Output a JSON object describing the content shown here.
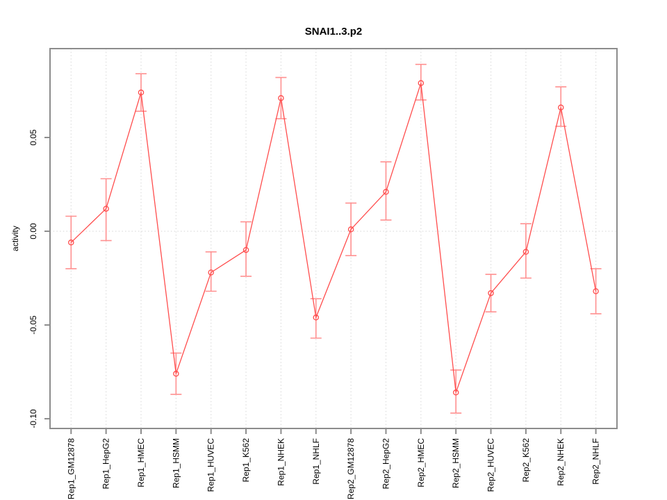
{
  "title": "SNAI1..3.p2",
  "chart_data": {
    "type": "line",
    "title": "SNAI1..3.p2",
    "xlabel": "",
    "ylabel": "activity",
    "legend": "none",
    "grid": {
      "vertical_dotted_at_each_category": true,
      "horizontal_dotted_at_zero": true
    },
    "marker": "open-circle",
    "error_bars": true,
    "ylim": [
      -0.1052,
      0.0974
    ],
    "y_ticks": [
      0.05,
      0.0,
      -0.05,
      -0.1
    ],
    "y_tick_labels": [
      "0.05",
      "0.00",
      "-0.05",
      "-0.10"
    ],
    "categories": [
      "Rep1_GM12878",
      "Rep1_HepG2",
      "Rep1_HMEC",
      "Rep1_HSMM",
      "Rep1_HUVEC",
      "Rep1_K562",
      "Rep1_NHEK",
      "Rep1_NHLF",
      "Rep2_GM12878",
      "Rep2_HepG2",
      "Rep2_HMEC",
      "Rep2_HSMM",
      "Rep2_HUVEC",
      "Rep2_K562",
      "Rep2_NHEK",
      "Rep2_NHLF"
    ],
    "series": [
      {
        "name": "activity",
        "values": [
          -0.006,
          0.012,
          0.074,
          -0.076,
          -0.022,
          -0.01,
          0.071,
          -0.046,
          0.001,
          0.021,
          0.079,
          -0.086,
          -0.033,
          -0.011,
          0.066,
          -0.032
        ],
        "error_low": [
          -0.02,
          -0.005,
          0.064,
          -0.087,
          -0.032,
          -0.024,
          0.06,
          -0.057,
          -0.013,
          0.006,
          0.07,
          -0.097,
          -0.043,
          -0.025,
          0.056,
          -0.044
        ],
        "error_high": [
          0.008,
          0.028,
          0.084,
          -0.065,
          -0.011,
          0.005,
          0.082,
          -0.036,
          0.015,
          0.037,
          0.089,
          -0.074,
          -0.023,
          0.004,
          0.077,
          -0.02
        ]
      }
    ],
    "colors": {
      "line": "#ff4d4d",
      "marker": "#ff4d4d",
      "error_bar": "#ff9090",
      "grid": "#dcdcdc",
      "axis_box": "#8c8c8c",
      "text": "#000000",
      "background": "#ffffff"
    }
  }
}
